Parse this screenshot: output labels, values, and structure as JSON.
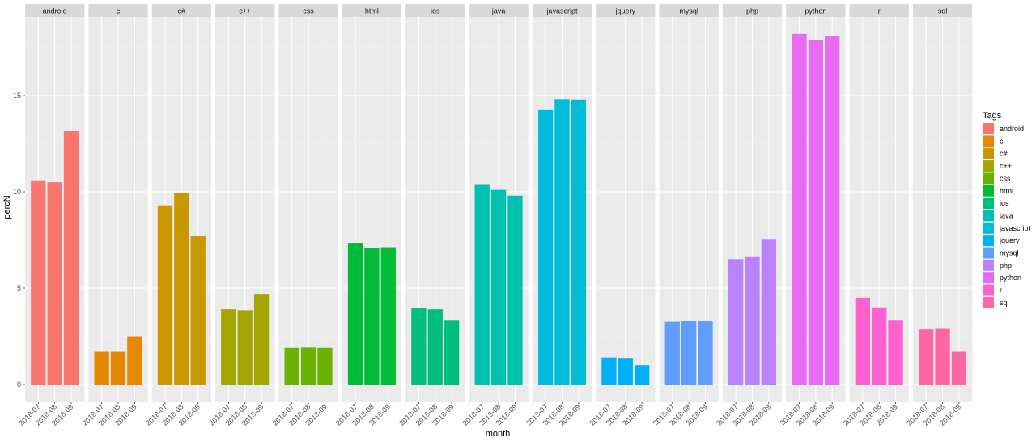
{
  "chart_data": {
    "type": "bar",
    "facet_by": "Tags",
    "categories": [
      "2018-07",
      "2018-08",
      "2018-09"
    ],
    "xlabel": "month",
    "ylabel": "percN",
    "ylim": [
      0,
      18.8
    ],
    "y_ticks": [
      0,
      5,
      10,
      15
    ],
    "grid": true,
    "legend": {
      "title": "Tags",
      "position": "right"
    },
    "series": [
      {
        "name": "android",
        "color": "#F8766D",
        "values": [
          10.6,
          10.5,
          13.15
        ]
      },
      {
        "name": "c",
        "color": "#E58700",
        "values": [
          1.7,
          1.7,
          2.5
        ]
      },
      {
        "name": "c#",
        "color": "#C99800",
        "values": [
          9.3,
          9.95,
          7.7
        ]
      },
      {
        "name": "c++",
        "color": "#A3A500",
        "values": [
          3.9,
          3.85,
          4.7
        ]
      },
      {
        "name": "css",
        "color": "#6BB100",
        "values": [
          1.9,
          1.92,
          1.9
        ]
      },
      {
        "name": "html",
        "color": "#00BA38",
        "values": [
          7.35,
          7.1,
          7.12
        ]
      },
      {
        "name": "ios",
        "color": "#00BF7D",
        "values": [
          3.95,
          3.9,
          3.35
        ]
      },
      {
        "name": "java",
        "color": "#00C0AF",
        "values": [
          10.4,
          10.1,
          9.8
        ]
      },
      {
        "name": "javascript",
        "color": "#00BCD8",
        "values": [
          14.25,
          14.82,
          14.8
        ]
      },
      {
        "name": "jquery",
        "color": "#00B0F6",
        "values": [
          1.4,
          1.38,
          1.0
        ]
      },
      {
        "name": "mysql",
        "color": "#619CFF",
        "values": [
          3.25,
          3.32,
          3.3
        ]
      },
      {
        "name": "php",
        "color": "#B983FF",
        "values": [
          6.5,
          6.65,
          7.55
        ]
      },
      {
        "name": "python",
        "color": "#E76BF3",
        "values": [
          18.2,
          17.9,
          18.1
        ]
      },
      {
        "name": "r",
        "color": "#FD61D1",
        "values": [
          4.5,
          4.0,
          3.35
        ]
      },
      {
        "name": "sql",
        "color": "#FF67A4",
        "values": [
          2.85,
          2.92,
          1.7
        ]
      }
    ]
  }
}
